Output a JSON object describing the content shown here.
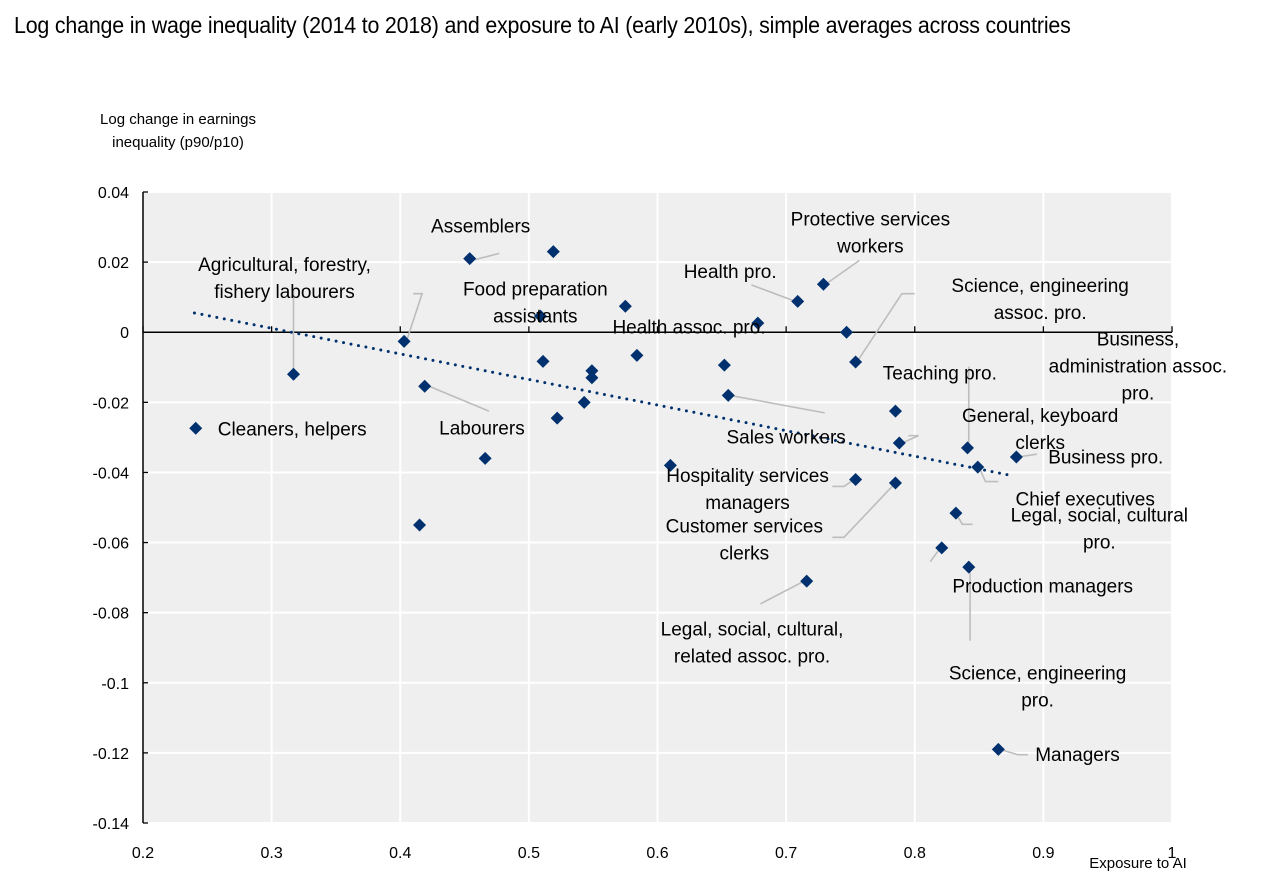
{
  "chart_data": {
    "type": "scatter",
    "title": "Log change in wage inequality (2014 to 2018) and exposure to AI (early 2010s), simple averages across countries",
    "xlabel": "Exposure to AI",
    "ylabel": "Log change in earnings inequality (p90/p10)",
    "ylabel_lines": [
      "Log change in earnings",
      "inequality (p90/p10)"
    ],
    "xlim": [
      0.2,
      1.0
    ],
    "ylim": [
      -0.14,
      0.04
    ],
    "xticks": [
      0.2,
      0.3,
      0.4,
      0.5,
      0.6,
      0.7,
      0.8,
      0.9,
      1
    ],
    "xtick_labels": [
      "0.2",
      "0.3",
      "0.4",
      "0.5",
      "0.6",
      "0.7",
      "0.8",
      "0.9",
      "1"
    ],
    "yticks": [
      0.04,
      0.02,
      0,
      -0.02,
      -0.04,
      -0.06,
      -0.08,
      -0.1,
      -0.12,
      -0.14
    ],
    "ytick_labels": [
      "0.04",
      "0.02",
      "0",
      "-0.02",
      "-0.04",
      "-0.06",
      "-0.08",
      "-0.1",
      "-0.12",
      "-0.14"
    ],
    "grid": true,
    "marker_color": "#00306e",
    "trendline": {
      "style": "dotted",
      "color": "#00306e",
      "x": [
        0.24,
        0.877
      ],
      "y": [
        0.0055,
        -0.041
      ]
    },
    "points": [
      {
        "label": "Cleaners, helpers",
        "x": 0.241,
        "y": -0.0274
      },
      {
        "label": "Agricultural, forestry, fishery labourers",
        "x": 0.317,
        "y": -0.012
      },
      {
        "label": "Food preparation assistants",
        "x": 0.403,
        "y": -0.0026
      },
      {
        "label": "Labourers",
        "x": 0.419,
        "y": -0.0154
      },
      {
        "label": "",
        "x": 0.415,
        "y": -0.055
      },
      {
        "label": "Assemblers",
        "x": 0.454,
        "y": 0.021
      },
      {
        "label": "",
        "x": 0.466,
        "y": -0.036
      },
      {
        "label": "",
        "x": 0.519,
        "y": 0.023
      },
      {
        "label": "",
        "x": 0.509,
        "y": 0.0046
      },
      {
        "label": "",
        "x": 0.511,
        "y": -0.0083
      },
      {
        "label": "",
        "x": 0.522,
        "y": -0.0245
      },
      {
        "label": "",
        "x": 0.543,
        "y": -0.02
      },
      {
        "label": "",
        "x": 0.549,
        "y": -0.011
      },
      {
        "label": "",
        "x": 0.549,
        "y": -0.013
      },
      {
        "label": "",
        "x": 0.575,
        "y": 0.0074
      },
      {
        "label": "",
        "x": 0.584,
        "y": -0.0066
      },
      {
        "label": "",
        "x": 0.61,
        "y": -0.038
      },
      {
        "label": "",
        "x": 0.652,
        "y": -0.0094
      },
      {
        "label": "Sales workers",
        "x": 0.655,
        "y": -0.018
      },
      {
        "label": "Health assoc. pro.",
        "x": 0.678,
        "y": 0.0026
      },
      {
        "label": "Health pro.",
        "x": 0.709,
        "y": 0.0088
      },
      {
        "label": "Protective services workers",
        "x": 0.729,
        "y": 0.0137
      },
      {
        "label": "",
        "x": 0.747,
        "y": 0.0
      },
      {
        "label": "Science, engineering assoc. pro.",
        "x": 0.754,
        "y": -0.0085
      },
      {
        "label": "Hospitality services managers",
        "x": 0.754,
        "y": -0.042
      },
      {
        "label": "Teaching pro.",
        "x": 0.785,
        "y": -0.0225
      },
      {
        "label": "General, keyboard clerks",
        "x": 0.788,
        "y": -0.0316
      },
      {
        "label": "Customer services clerks",
        "x": 0.785,
        "y": -0.043
      },
      {
        "label": "Legal, social, cultural, related assoc. pro.",
        "x": 0.716,
        "y": -0.071
      },
      {
        "label": "Production managers",
        "x": 0.821,
        "y": -0.0615
      },
      {
        "label": "Legal, social, cultural pro.",
        "x": 0.832,
        "y": -0.0516
      },
      {
        "label": "Business, administration assoc. pro.",
        "x": 0.841,
        "y": -0.033
      },
      {
        "label": "Chief executives",
        "x": 0.849,
        "y": -0.0385
      },
      {
        "label": "Business pro.",
        "x": 0.879,
        "y": -0.0356
      },
      {
        "label": "Science, engineering pro.",
        "x": 0.842,
        "y": -0.067
      },
      {
        "label": "Managers",
        "x": 0.865,
        "y": -0.119
      }
    ],
    "annotations": [
      {
        "text": "Agricultural, forestry,",
        "text2": "fishery labourers",
        "tx": 0.31,
        "ty": 0.0195,
        "lines": [
          [
            0.317,
            0.0122
          ],
          [
            0.317,
            -0.012
          ]
        ]
      },
      {
        "text": "Assemblers",
        "tx": 0.4625,
        "ty": 0.0305,
        "lines": [
          [
            0.477,
            0.0225
          ],
          [
            0.456,
            0.0205
          ]
        ]
      },
      {
        "text": "Food preparation",
        "text2": "assistants",
        "tx": 0.505,
        "ty": 0.0125,
        "lines": [
          [
            0.41,
            0.011
          ],
          [
            0.417,
            0.011
          ],
          [
            0.405,
            -0.0024
          ]
        ]
      },
      {
        "text": "Labourers",
        "tx": 0.4635,
        "ty": -0.0272,
        "lines": [
          [
            0.469,
            -0.0225
          ],
          [
            0.421,
            -0.0152
          ]
        ]
      },
      {
        "text": "Health assoc. pro.",
        "tx": 0.6245,
        "ty": 0.0017,
        "lines": []
      },
      {
        "text": "Health pro.",
        "tx": 0.6565,
        "ty": 0.0174,
        "lines": [
          [
            0.673,
            0.0135
          ],
          [
            0.708,
            0.0087
          ]
        ]
      },
      {
        "text": "Protective services",
        "text2": "workers",
        "tx": 0.7655,
        "ty": 0.0325,
        "lines": [
          [
            0.757,
            0.0205
          ],
          [
            0.73,
            0.0135
          ]
        ]
      },
      {
        "text": "Science, engineering",
        "text2": "assoc. pro.",
        "tx": 0.8975,
        "ty": 0.0135,
        "lines": [
          [
            0.8,
            0.011
          ],
          [
            0.79,
            0.011
          ],
          [
            0.755,
            -0.0085
          ]
        ]
      },
      {
        "text": "Teaching pro.",
        "tx": 0.8195,
        "ty": -0.0115,
        "lines": []
      },
      {
        "text": "Business,",
        "text2": "administration assoc.",
        "text3": "pro.",
        "tx": 0.9735,
        "ty": -0.0018,
        "lines": [
          [
            0.842,
            -0.0098
          ],
          [
            0.842,
            -0.033
          ]
        ]
      },
      {
        "text": "General, keyboard",
        "text2": "clerks",
        "tx": 0.8975,
        "ty": -0.0236,
        "lines": [
          [
            0.795,
            -0.0295
          ],
          [
            0.803,
            -0.0295
          ],
          [
            0.789,
            -0.0318
          ]
        ]
      },
      {
        "text": "Sales workers",
        "tx": 0.7,
        "ty": -0.0298,
        "lines": [
          [
            0.73,
            -0.023
          ],
          [
            0.656,
            -0.018
          ]
        ]
      },
      {
        "text": "Business pro.",
        "tx": 0.9485,
        "ty": -0.0355,
        "lines": [
          [
            0.895,
            -0.0348
          ],
          [
            0.88,
            -0.0356
          ]
        ]
      },
      {
        "text": "Chief executives",
        "tx": 0.9325,
        "ty": -0.0475,
        "lines": [
          [
            0.865,
            -0.0426
          ],
          [
            0.855,
            -0.0426
          ],
          [
            0.85,
            -0.0385
          ]
        ]
      },
      {
        "text": "Hospitality services",
        "text2": "managers",
        "tx": 0.67,
        "ty": -0.0408,
        "lines": [
          [
            0.736,
            -0.044
          ],
          [
            0.745,
            -0.044
          ],
          [
            0.753,
            -0.042
          ]
        ]
      },
      {
        "text": "Legal, social, cultural",
        "text2": "pro.",
        "tx": 0.9435,
        "ty": -0.052,
        "lines": [
          [
            0.845,
            -0.0548
          ],
          [
            0.837,
            -0.0548
          ],
          [
            0.832,
            -0.0517
          ]
        ]
      },
      {
        "text": "Customer services",
        "text2": "clerks",
        "tx": 0.6675,
        "ty": -0.0552,
        "lines": [
          [
            0.736,
            -0.0585
          ],
          [
            0.745,
            -0.0585
          ],
          [
            0.785,
            -0.043
          ]
        ]
      },
      {
        "text": "Production managers",
        "tx": 0.8995,
        "ty": -0.0723,
        "lines": [
          [
            0.812,
            -0.0655
          ],
          [
            0.82,
            -0.0615
          ]
        ]
      },
      {
        "text": "Legal, social, cultural,",
        "text2": "related assoc. pro.",
        "tx": 0.6735,
        "ty": -0.0845,
        "lines": [
          [
            0.68,
            -0.0775
          ],
          [
            0.715,
            -0.0708
          ]
        ]
      },
      {
        "text": "Science, engineering",
        "text2": "pro.",
        "tx": 0.8955,
        "ty": -0.097,
        "lines": [
          [
            0.843,
            -0.067
          ],
          [
            0.843,
            -0.088
          ]
        ]
      },
      {
        "text": "Managers",
        "tx": 0.9265,
        "ty": -0.1203,
        "lines": [
          [
            0.866,
            -0.119
          ],
          [
            0.88,
            -0.1205
          ],
          [
            0.888,
            -0.1205
          ]
        ]
      }
    ]
  }
}
